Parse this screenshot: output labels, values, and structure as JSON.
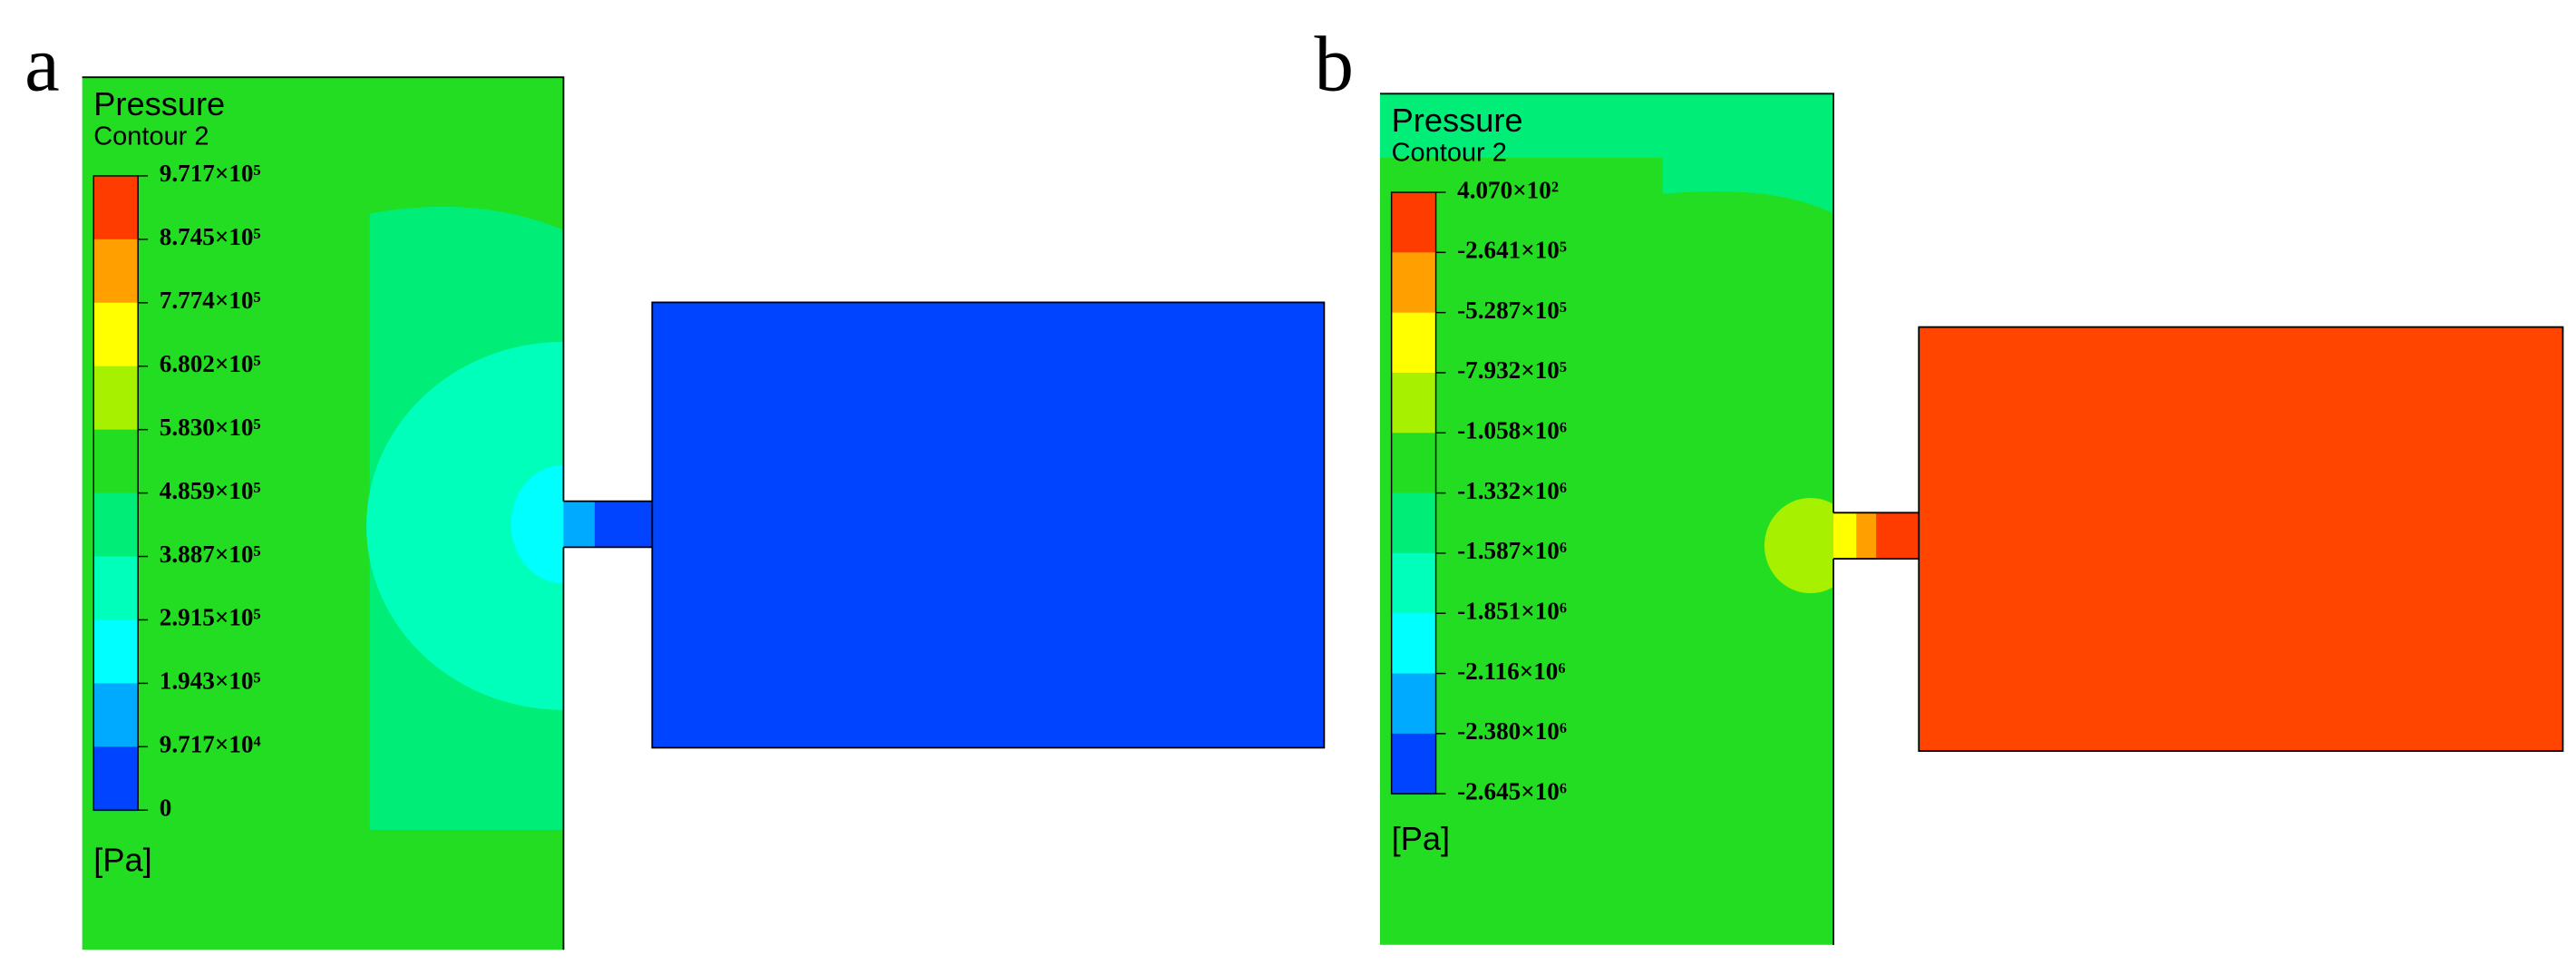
{
  "panels": [
    {
      "label": "a",
      "legend": {
        "title": "Pressure",
        "subtitle": "Contour 2",
        "unit": "[Pa]",
        "levels": [
          "9.717×10⁵",
          "8.745×10⁵",
          "7.774×10⁵",
          "6.802×10⁵",
          "5.830×10⁵",
          "4.859×10⁵",
          "3.887×10⁵",
          "2.915×10⁵",
          "1.943×10⁵",
          "9.717×10⁴",
          "0"
        ],
        "colors": [
          "#ff3c00",
          "#ffa000",
          "#ffff00",
          "#a6f000",
          "#22dd22",
          "#00ee77",
          "#00ffbb",
          "#00ffff",
          "#00aaff",
          "#0044ff"
        ]
      }
    },
    {
      "label": "b",
      "legend": {
        "title": "Pressure",
        "subtitle": "Contour 2",
        "unit": "[Pa]",
        "levels": [
          "4.070×10²",
          "-2.641×10⁵",
          "-5.287×10⁵",
          "-7.932×10⁵",
          "-1.058×10⁶",
          "-1.332×10⁶",
          "-1.587×10⁶",
          "-1.851×10⁶",
          "-2.116×10⁶",
          "-2.380×10⁶",
          "-2.645×10⁶"
        ],
        "colors": [
          "#ff3c00",
          "#ffa000",
          "#ffff00",
          "#a6f000",
          "#22dd22",
          "#00ee77",
          "#00ffbb",
          "#00ffff",
          "#00aaff",
          "#0044ff"
        ]
      }
    }
  ]
}
